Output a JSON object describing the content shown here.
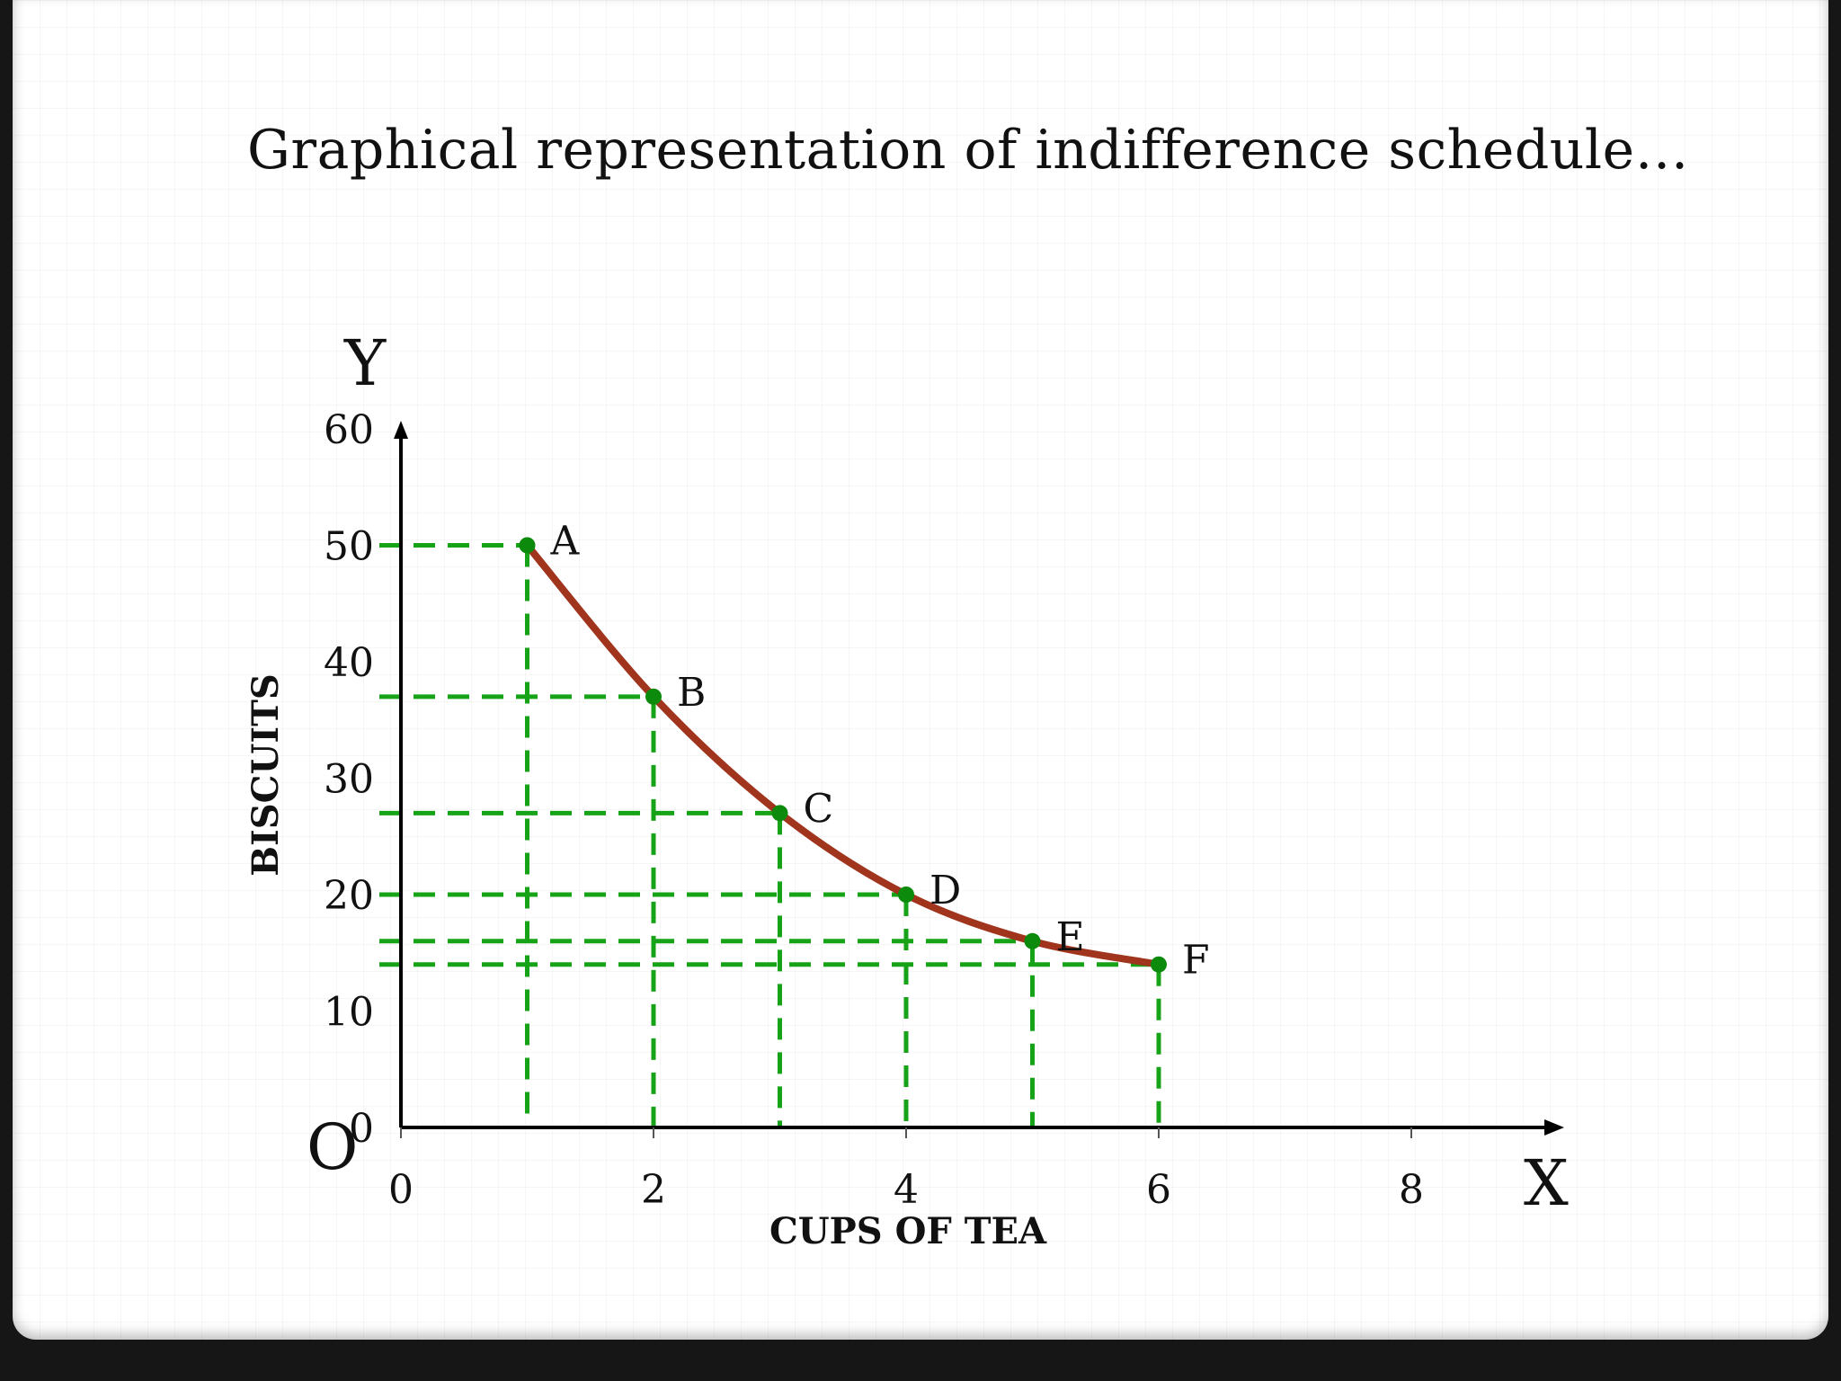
{
  "slide": {
    "title": "Graphical representation of indifference schedule…"
  },
  "chart_data": {
    "type": "line",
    "xlabel": "CUPS OF TEA",
    "ylabel": "BISCUITS",
    "x_axis_letter": "X",
    "y_axis_letter": "Y",
    "origin_label": "O",
    "xlim": [
      0,
      9
    ],
    "ylim": [
      0,
      60
    ],
    "x_ticks": [
      0,
      2,
      4,
      6,
      8
    ],
    "y_ticks": [
      0,
      10,
      20,
      30,
      40,
      50,
      60
    ],
    "grid": false,
    "colors": {
      "curve": "#a0341c",
      "points": "#0b8a0b",
      "guides": "#17a317",
      "axes": "#000000"
    },
    "series": [
      {
        "points": [
          {
            "label": "A",
            "x": 1,
            "y": 50
          },
          {
            "label": "B",
            "x": 2,
            "y": 37
          },
          {
            "label": "C",
            "x": 3,
            "y": 27
          },
          {
            "label": "D",
            "x": 4,
            "y": 20
          },
          {
            "label": "E",
            "x": 5,
            "y": 16
          },
          {
            "label": "F",
            "x": 6,
            "y": 14
          }
        ]
      }
    ]
  }
}
